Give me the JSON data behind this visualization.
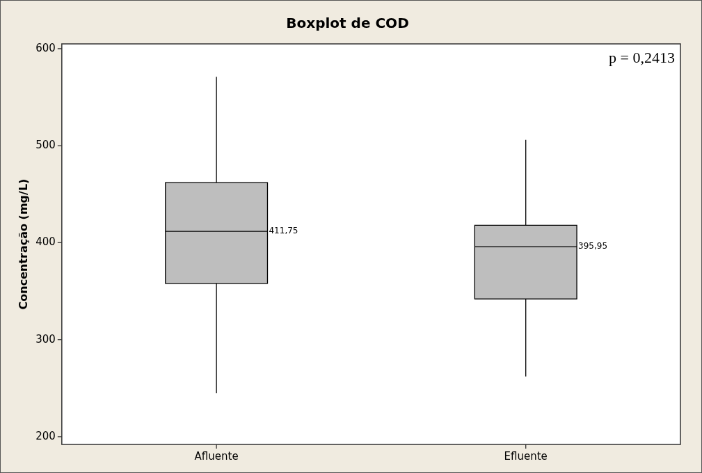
{
  "chart_data": {
    "type": "box",
    "title": "Boxplot de COD",
    "ylabel": "Concentração (mg/L)",
    "categories": [
      "Afluente",
      "Efluente"
    ],
    "boxes": [
      {
        "low": 245,
        "q1": 358,
        "median": 411.75,
        "q3": 462,
        "high": 571
      },
      {
        "low": 262,
        "q1": 342,
        "median": 395.95,
        "q3": 418,
        "high": 506
      }
    ],
    "value_labels": [
      "411,75",
      "395,95"
    ],
    "color": "#bebebe",
    "ylim": [
      192,
      605
    ],
    "yticks": [
      200,
      300,
      400,
      500,
      600
    ],
    "grid": false,
    "legend": false,
    "annotations": [
      "p = 0,2413"
    ]
  }
}
